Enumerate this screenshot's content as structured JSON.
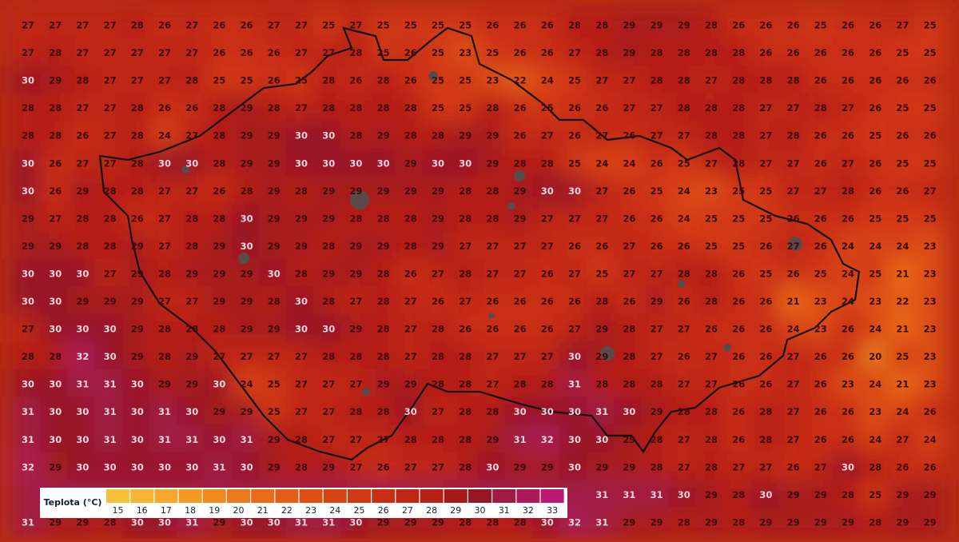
{
  "grid": {
    "rows": [
      [
        27,
        27,
        27,
        27,
        28,
        26,
        27,
        26,
        26,
        27,
        27,
        25,
        27,
        25,
        25,
        25,
        25,
        26,
        26,
        26,
        28,
        28,
        29,
        29,
        29,
        28,
        26,
        26,
        26,
        25,
        26,
        26,
        27,
        25
      ],
      [
        27,
        28,
        27,
        27,
        27,
        27,
        27,
        26,
        26,
        26,
        27,
        27,
        28,
        25,
        26,
        25,
        23,
        25,
        26,
        26,
        27,
        28,
        29,
        28,
        28,
        28,
        28,
        26,
        26,
        26,
        26,
        26,
        25,
        25
      ],
      [
        30,
        29,
        28,
        27,
        27,
        27,
        28,
        25,
        25,
        26,
        25,
        28,
        26,
        28,
        26,
        25,
        25,
        23,
        22,
        24,
        25,
        27,
        27,
        28,
        28,
        27,
        28,
        28,
        28,
        26,
        26,
        26,
        26,
        26
      ],
      [
        28,
        28,
        27,
        27,
        28,
        26,
        26,
        28,
        29,
        28,
        27,
        28,
        28,
        28,
        28,
        25,
        25,
        28,
        26,
        25,
        26,
        26,
        27,
        27,
        28,
        28,
        28,
        27,
        27,
        28,
        27,
        26,
        25,
        25
      ],
      [
        28,
        28,
        26,
        27,
        28,
        24,
        27,
        28,
        29,
        29,
        30,
        30,
        28,
        29,
        28,
        28,
        29,
        29,
        26,
        27,
        26,
        27,
        26,
        27,
        27,
        28,
        28,
        27,
        28,
        26,
        26,
        25,
        26,
        26
      ],
      [
        30,
        26,
        27,
        27,
        28,
        30,
        30,
        28,
        29,
        29,
        30,
        30,
        30,
        30,
        29,
        30,
        30,
        29,
        28,
        28,
        25,
        24,
        24,
        26,
        25,
        27,
        28,
        27,
        27,
        26,
        27,
        26,
        25,
        25
      ],
      [
        30,
        26,
        29,
        28,
        28,
        27,
        27,
        26,
        28,
        29,
        28,
        29,
        29,
        29,
        29,
        29,
        28,
        28,
        29,
        30,
        30,
        27,
        26,
        25,
        24,
        23,
        25,
        25,
        27,
        27,
        28,
        26,
        26,
        27
      ],
      [
        29,
        27,
        28,
        28,
        26,
        27,
        28,
        28,
        30,
        29,
        29,
        29,
        28,
        28,
        28,
        29,
        28,
        28,
        29,
        27,
        27,
        27,
        26,
        26,
        24,
        25,
        25,
        25,
        26,
        26,
        26,
        25,
        25,
        25
      ],
      [
        29,
        29,
        28,
        28,
        29,
        27,
        28,
        29,
        30,
        29,
        29,
        28,
        29,
        29,
        28,
        29,
        27,
        27,
        27,
        27,
        26,
        26,
        27,
        26,
        26,
        25,
        25,
        26,
        27,
        26,
        24,
        24,
        24,
        23
      ],
      [
        30,
        30,
        30,
        27,
        29,
        28,
        29,
        29,
        29,
        30,
        28,
        29,
        29,
        28,
        26,
        27,
        28,
        27,
        27,
        26,
        27,
        25,
        27,
        27,
        28,
        28,
        26,
        25,
        26,
        25,
        24,
        25,
        21,
        23
      ],
      [
        30,
        30,
        29,
        29,
        29,
        27,
        27,
        29,
        29,
        28,
        30,
        28,
        27,
        28,
        27,
        26,
        27,
        26,
        26,
        26,
        26,
        28,
        26,
        29,
        26,
        28,
        26,
        26,
        21,
        23,
        24,
        23,
        22,
        23
      ],
      [
        27,
        30,
        30,
        30,
        29,
        28,
        28,
        28,
        29,
        29,
        30,
        30,
        29,
        28,
        27,
        28,
        26,
        26,
        26,
        26,
        27,
        29,
        28,
        27,
        27,
        26,
        26,
        26,
        24,
        23,
        26,
        24,
        21,
        23
      ],
      [
        28,
        28,
        32,
        30,
        29,
        28,
        29,
        27,
        27,
        27,
        27,
        28,
        28,
        28,
        27,
        28,
        28,
        27,
        27,
        27,
        30,
        29,
        28,
        27,
        26,
        27,
        26,
        26,
        27,
        26,
        26,
        20,
        25,
        23
      ],
      [
        30,
        30,
        31,
        31,
        30,
        29,
        29,
        30,
        24,
        25,
        27,
        27,
        27,
        29,
        29,
        28,
        28,
        27,
        28,
        28,
        31,
        28,
        28,
        28,
        27,
        27,
        26,
        26,
        27,
        26,
        23,
        24,
        21,
        23
      ],
      [
        31,
        30,
        30,
        31,
        30,
        31,
        30,
        29,
        29,
        25,
        27,
        27,
        28,
        28,
        30,
        27,
        28,
        28,
        30,
        30,
        30,
        31,
        30,
        29,
        28,
        28,
        26,
        28,
        27,
        26,
        26,
        23,
        24,
        26
      ],
      [
        31,
        30,
        30,
        31,
        30,
        31,
        31,
        30,
        31,
        29,
        28,
        27,
        27,
        27,
        28,
        28,
        28,
        29,
        31,
        32,
        30,
        30,
        29,
        28,
        27,
        28,
        26,
        28,
        27,
        26,
        26,
        24,
        27,
        24
      ],
      [
        32,
        29,
        30,
        30,
        30,
        30,
        30,
        31,
        30,
        29,
        28,
        29,
        27,
        26,
        27,
        27,
        28,
        30,
        29,
        29,
        30,
        29,
        29,
        28,
        27,
        28,
        27,
        27,
        26,
        27,
        30,
        28,
        26,
        26
      ],
      [
        null,
        null,
        null,
        null,
        null,
        null,
        null,
        null,
        null,
        null,
        null,
        null,
        null,
        null,
        null,
        null,
        null,
        null,
        null,
        null,
        null,
        31,
        31,
        31,
        30,
        29,
        28,
        30,
        29,
        29,
        28,
        25,
        29,
        29
      ],
      [
        31,
        29,
        29,
        28,
        30,
        30,
        31,
        29,
        30,
        30,
        31,
        31,
        30,
        29,
        29,
        29,
        28,
        28,
        28,
        30,
        32,
        31,
        29,
        29,
        28,
        29,
        28,
        29,
        29,
        29,
        29,
        28,
        29,
        29
      ]
    ]
  },
  "legend": {
    "title": "Teplota (°C)",
    "steps": [
      {
        "label": 15,
        "color": "#f7c23a"
      },
      {
        "label": 16,
        "color": "#f6b532"
      },
      {
        "label": 17,
        "color": "#f5a82b"
      },
      {
        "label": 18,
        "color": "#f39a25"
      },
      {
        "label": 19,
        "color": "#f08a20"
      },
      {
        "label": 20,
        "color": "#ec7a1c"
      },
      {
        "label": 21,
        "color": "#e86b18"
      },
      {
        "label": 22,
        "color": "#e35d16"
      },
      {
        "label": 23,
        "color": "#de4f14"
      },
      {
        "label": 24,
        "color": "#d84313"
      },
      {
        "label": 25,
        "color": "#d13813"
      },
      {
        "label": 26,
        "color": "#c92e13"
      },
      {
        "label": 27,
        "color": "#c02614"
      },
      {
        "label": 28,
        "color": "#b61f16"
      },
      {
        "label": 29,
        "color": "#a81a1a"
      },
      {
        "label": 30,
        "color": "#971626"
      },
      {
        "label": 31,
        "color": "#a01a45"
      },
      {
        "label": 32,
        "color": "#ad1a5a"
      },
      {
        "label": 33,
        "color": "#bb196f"
      }
    ]
  }
}
